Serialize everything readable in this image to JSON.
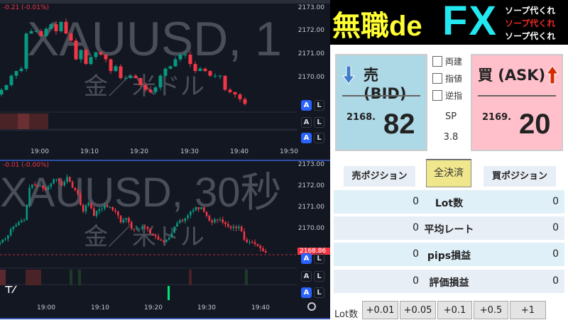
{
  "chart1": {
    "watermark": "XAUUSD, 1",
    "subtitle": "金／米ドル",
    "change": "-0.21 (-0.01%)",
    "price_ticks": [
      "2173.00",
      "2172.00",
      "2171.00",
      "2170.00"
    ],
    "time_ticks": [
      "19:00",
      "19:10",
      "19:20",
      "19:30",
      "19:40",
      "19:50"
    ],
    "closes": [
      2169.5,
      2169.7,
      2170.1,
      2170.3,
      2170.4,
      2171.9,
      2172.0,
      2172.0,
      2171.8,
      2172.1,
      2172.3,
      2172.0,
      2172.4,
      2171.9,
      2171.6,
      2170.8,
      2171.2,
      2170.6,
      2170.9,
      2171.1,
      2171.0,
      2170.8,
      2170.3,
      2170.5,
      2170.0,
      2170.0,
      2170.1,
      2170.0,
      2169.7,
      2169.5,
      2169.4,
      2169.6,
      2170.1,
      2170.4,
      2170.5,
      2170.8,
      2171.0,
      2171.0,
      2170.6,
      2170.3,
      2170.4,
      2170.3,
      2170.1,
      2170.1,
      2170.1,
      2169.5,
      2169.4,
      2169.3,
      2169.1,
      2168.9
    ]
  },
  "chart2": {
    "watermark": "XAUUSD, 30秒",
    "subtitle": "金／米ドル",
    "change": "-0.01 (-0.00%)",
    "price_ticks": [
      "2173.00",
      "2172.00",
      "2171.00",
      "2170.00"
    ],
    "time_ticks": [
      "19:00",
      "19:10",
      "19:20",
      "19:30",
      "19:40"
    ],
    "current_price": "2168.86"
  },
  "scale_buttons": {
    "auto": "A",
    "log": "L"
  },
  "colors": {
    "up": "#089981",
    "down": "#f23645",
    "bid_bg": "#add8e6",
    "ask_bg": "#ffc0cb",
    "close_bg": "#f0e68c"
  },
  "header": {
    "title1": "無職de",
    "title2": "FX",
    "sub": [
      "ソープ代くれ",
      "ソープ代くれ",
      "ソープ代くれ"
    ]
  },
  "bid": {
    "label": "売 (BID)",
    "int": "2168.",
    "dec": "82",
    "icon": "arrow-down-icon"
  },
  "ask": {
    "label": "買 (ASK)",
    "int": "2169.",
    "dec": "20",
    "icon": "arrow-up-icon"
  },
  "options": [
    "両建",
    "指値",
    "逆指"
  ],
  "spread": {
    "label": "SP",
    "value": "3.8"
  },
  "positions": {
    "sell": "売ポジション",
    "close_all": "全決済",
    "buy": "買ポジション"
  },
  "rows": [
    {
      "label": "Lot数",
      "sell": "0",
      "buy": "0"
    },
    {
      "label": "平均レート",
      "sell": "0",
      "buy": "0"
    },
    {
      "label": "pips損益",
      "sell": "0",
      "buy": "0"
    },
    {
      "label": "評価損益",
      "sell": "0",
      "buy": "0"
    }
  ],
  "lot": {
    "label": "Lot数",
    "buttons": [
      "+0.01",
      "+0.05",
      "+0.1",
      "+0.5",
      "+1"
    ]
  }
}
